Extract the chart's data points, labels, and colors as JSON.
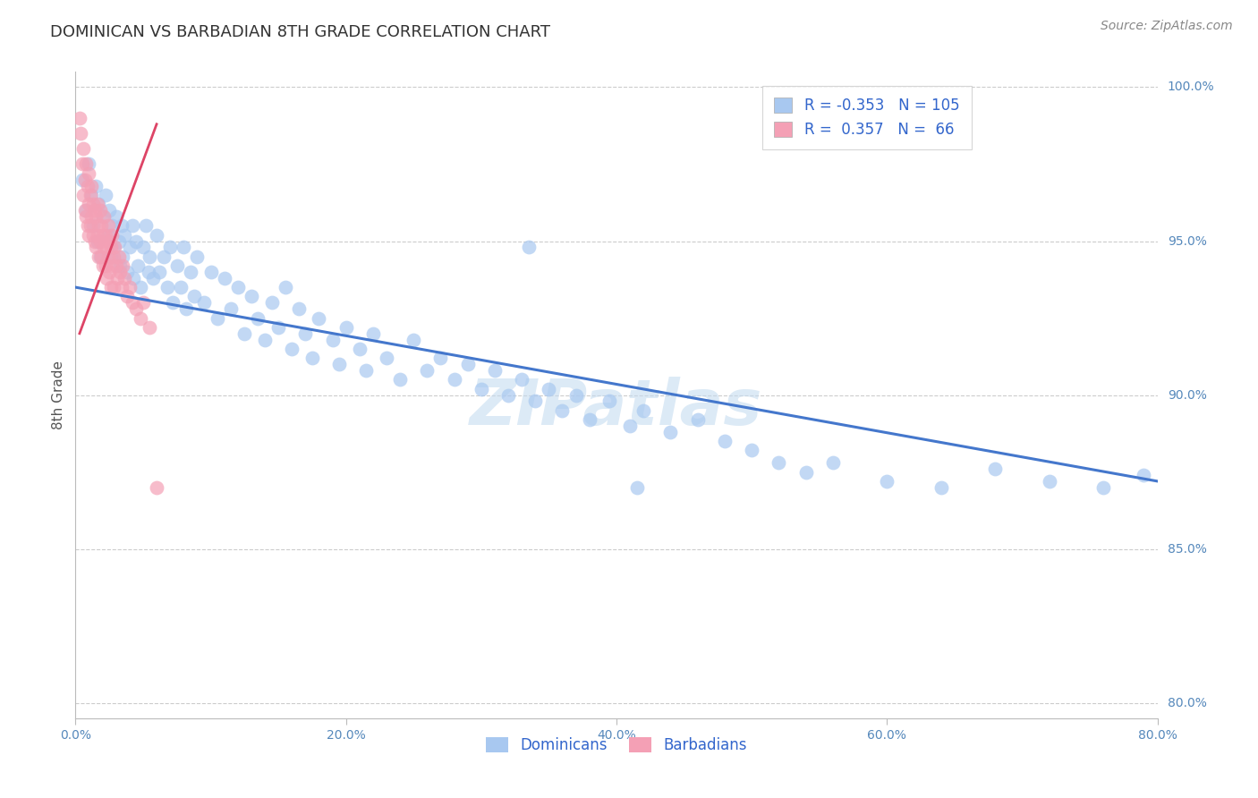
{
  "title": "DOMINICAN VS BARBADIAN 8TH GRADE CORRELATION CHART",
  "ylabel": "8th Grade",
  "source_text": "Source: ZipAtlas.com",
  "watermark": "ZIPatlas",
  "xlim": [
    0.0,
    0.8
  ],
  "ylim": [
    0.795,
    1.005
  ],
  "xtick_labels": [
    "0.0%",
    "20.0%",
    "40.0%",
    "60.0%",
    "80.0%"
  ],
  "xtick_values": [
    0.0,
    0.2,
    0.4,
    0.6,
    0.8
  ],
  "ytick_labels": [
    "80.0%",
    "85.0%",
    "90.0%",
    "95.0%",
    "100.0%"
  ],
  "ytick_values": [
    0.8,
    0.85,
    0.9,
    0.95,
    1.0
  ],
  "blue_color": "#A8C8F0",
  "pink_color": "#F4A0B5",
  "blue_line_color": "#4477CC",
  "pink_line_color": "#DD4466",
  "legend_dominicans": "Dominicans",
  "legend_barbadians": "Barbadians",
  "blue_R": -0.353,
  "blue_N": 105,
  "pink_R": 0.357,
  "pink_N": 66,
  "blue_x": [
    0.005,
    0.008,
    0.01,
    0.012,
    0.013,
    0.015,
    0.016,
    0.017,
    0.018,
    0.02,
    0.022,
    0.024,
    0.025,
    0.026,
    0.027,
    0.028,
    0.03,
    0.032,
    0.033,
    0.034,
    0.035,
    0.036,
    0.038,
    0.04,
    0.042,
    0.043,
    0.045,
    0.046,
    0.048,
    0.05,
    0.052,
    0.054,
    0.055,
    0.057,
    0.06,
    0.062,
    0.065,
    0.068,
    0.07,
    0.072,
    0.075,
    0.078,
    0.08,
    0.082,
    0.085,
    0.088,
    0.09,
    0.095,
    0.1,
    0.105,
    0.11,
    0.115,
    0.12,
    0.125,
    0.13,
    0.135,
    0.14,
    0.145,
    0.15,
    0.155,
    0.16,
    0.165,
    0.17,
    0.175,
    0.18,
    0.19,
    0.195,
    0.2,
    0.21,
    0.215,
    0.22,
    0.23,
    0.24,
    0.25,
    0.26,
    0.27,
    0.28,
    0.29,
    0.3,
    0.31,
    0.32,
    0.33,
    0.34,
    0.35,
    0.36,
    0.37,
    0.38,
    0.395,
    0.41,
    0.42,
    0.44,
    0.46,
    0.48,
    0.5,
    0.52,
    0.54,
    0.56,
    0.6,
    0.64,
    0.68,
    0.72,
    0.76,
    0.79,
    0.335,
    0.415
  ],
  "blue_y": [
    0.97,
    0.96,
    0.975,
    0.965,
    0.955,
    0.968,
    0.95,
    0.962,
    0.945,
    0.958,
    0.965,
    0.952,
    0.96,
    0.945,
    0.955,
    0.948,
    0.958,
    0.95,
    0.942,
    0.955,
    0.945,
    0.952,
    0.94,
    0.948,
    0.955,
    0.938,
    0.95,
    0.942,
    0.935,
    0.948,
    0.955,
    0.94,
    0.945,
    0.938,
    0.952,
    0.94,
    0.945,
    0.935,
    0.948,
    0.93,
    0.942,
    0.935,
    0.948,
    0.928,
    0.94,
    0.932,
    0.945,
    0.93,
    0.94,
    0.925,
    0.938,
    0.928,
    0.935,
    0.92,
    0.932,
    0.925,
    0.918,
    0.93,
    0.922,
    0.935,
    0.915,
    0.928,
    0.92,
    0.912,
    0.925,
    0.918,
    0.91,
    0.922,
    0.915,
    0.908,
    0.92,
    0.912,
    0.905,
    0.918,
    0.908,
    0.912,
    0.905,
    0.91,
    0.902,
    0.908,
    0.9,
    0.905,
    0.898,
    0.902,
    0.895,
    0.9,
    0.892,
    0.898,
    0.89,
    0.895,
    0.888,
    0.892,
    0.885,
    0.882,
    0.878,
    0.875,
    0.878,
    0.872,
    0.87,
    0.876,
    0.872,
    0.87,
    0.874,
    0.948,
    0.87
  ],
  "pink_x": [
    0.003,
    0.004,
    0.005,
    0.006,
    0.006,
    0.007,
    0.007,
    0.008,
    0.008,
    0.009,
    0.009,
    0.01,
    0.01,
    0.01,
    0.011,
    0.011,
    0.012,
    0.012,
    0.013,
    0.013,
    0.014,
    0.014,
    0.015,
    0.015,
    0.016,
    0.016,
    0.017,
    0.017,
    0.018,
    0.018,
    0.019,
    0.019,
    0.02,
    0.02,
    0.021,
    0.021,
    0.022,
    0.022,
    0.023,
    0.023,
    0.024,
    0.024,
    0.025,
    0.025,
    0.026,
    0.026,
    0.027,
    0.027,
    0.028,
    0.028,
    0.029,
    0.03,
    0.031,
    0.032,
    0.033,
    0.034,
    0.035,
    0.036,
    0.038,
    0.04,
    0.042,
    0.045,
    0.048,
    0.05,
    0.055,
    0.06
  ],
  "pink_y": [
    0.99,
    0.985,
    0.975,
    0.98,
    0.965,
    0.97,
    0.96,
    0.975,
    0.958,
    0.968,
    0.955,
    0.972,
    0.962,
    0.952,
    0.965,
    0.955,
    0.968,
    0.958,
    0.962,
    0.952,
    0.96,
    0.95,
    0.958,
    0.948,
    0.962,
    0.952,
    0.955,
    0.945,
    0.96,
    0.95,
    0.955,
    0.945,
    0.952,
    0.942,
    0.958,
    0.948,
    0.952,
    0.942,
    0.948,
    0.938,
    0.955,
    0.945,
    0.95,
    0.94,
    0.948,
    0.935,
    0.952,
    0.942,
    0.945,
    0.935,
    0.948,
    0.942,
    0.938,
    0.945,
    0.94,
    0.935,
    0.942,
    0.938,
    0.932,
    0.935,
    0.93,
    0.928,
    0.925,
    0.93,
    0.922,
    0.87
  ],
  "blue_trend_x": [
    0.0,
    0.8
  ],
  "blue_trend_y": [
    0.935,
    0.872
  ],
  "pink_trend_x": [
    0.003,
    0.06
  ],
  "pink_trend_y": [
    0.92,
    0.988
  ],
  "background_color": "#ffffff",
  "grid_color": "#cccccc",
  "title_fontsize": 13,
  "axis_label_fontsize": 11,
  "tick_fontsize": 10,
  "legend_fontsize": 12,
  "source_fontsize": 10
}
